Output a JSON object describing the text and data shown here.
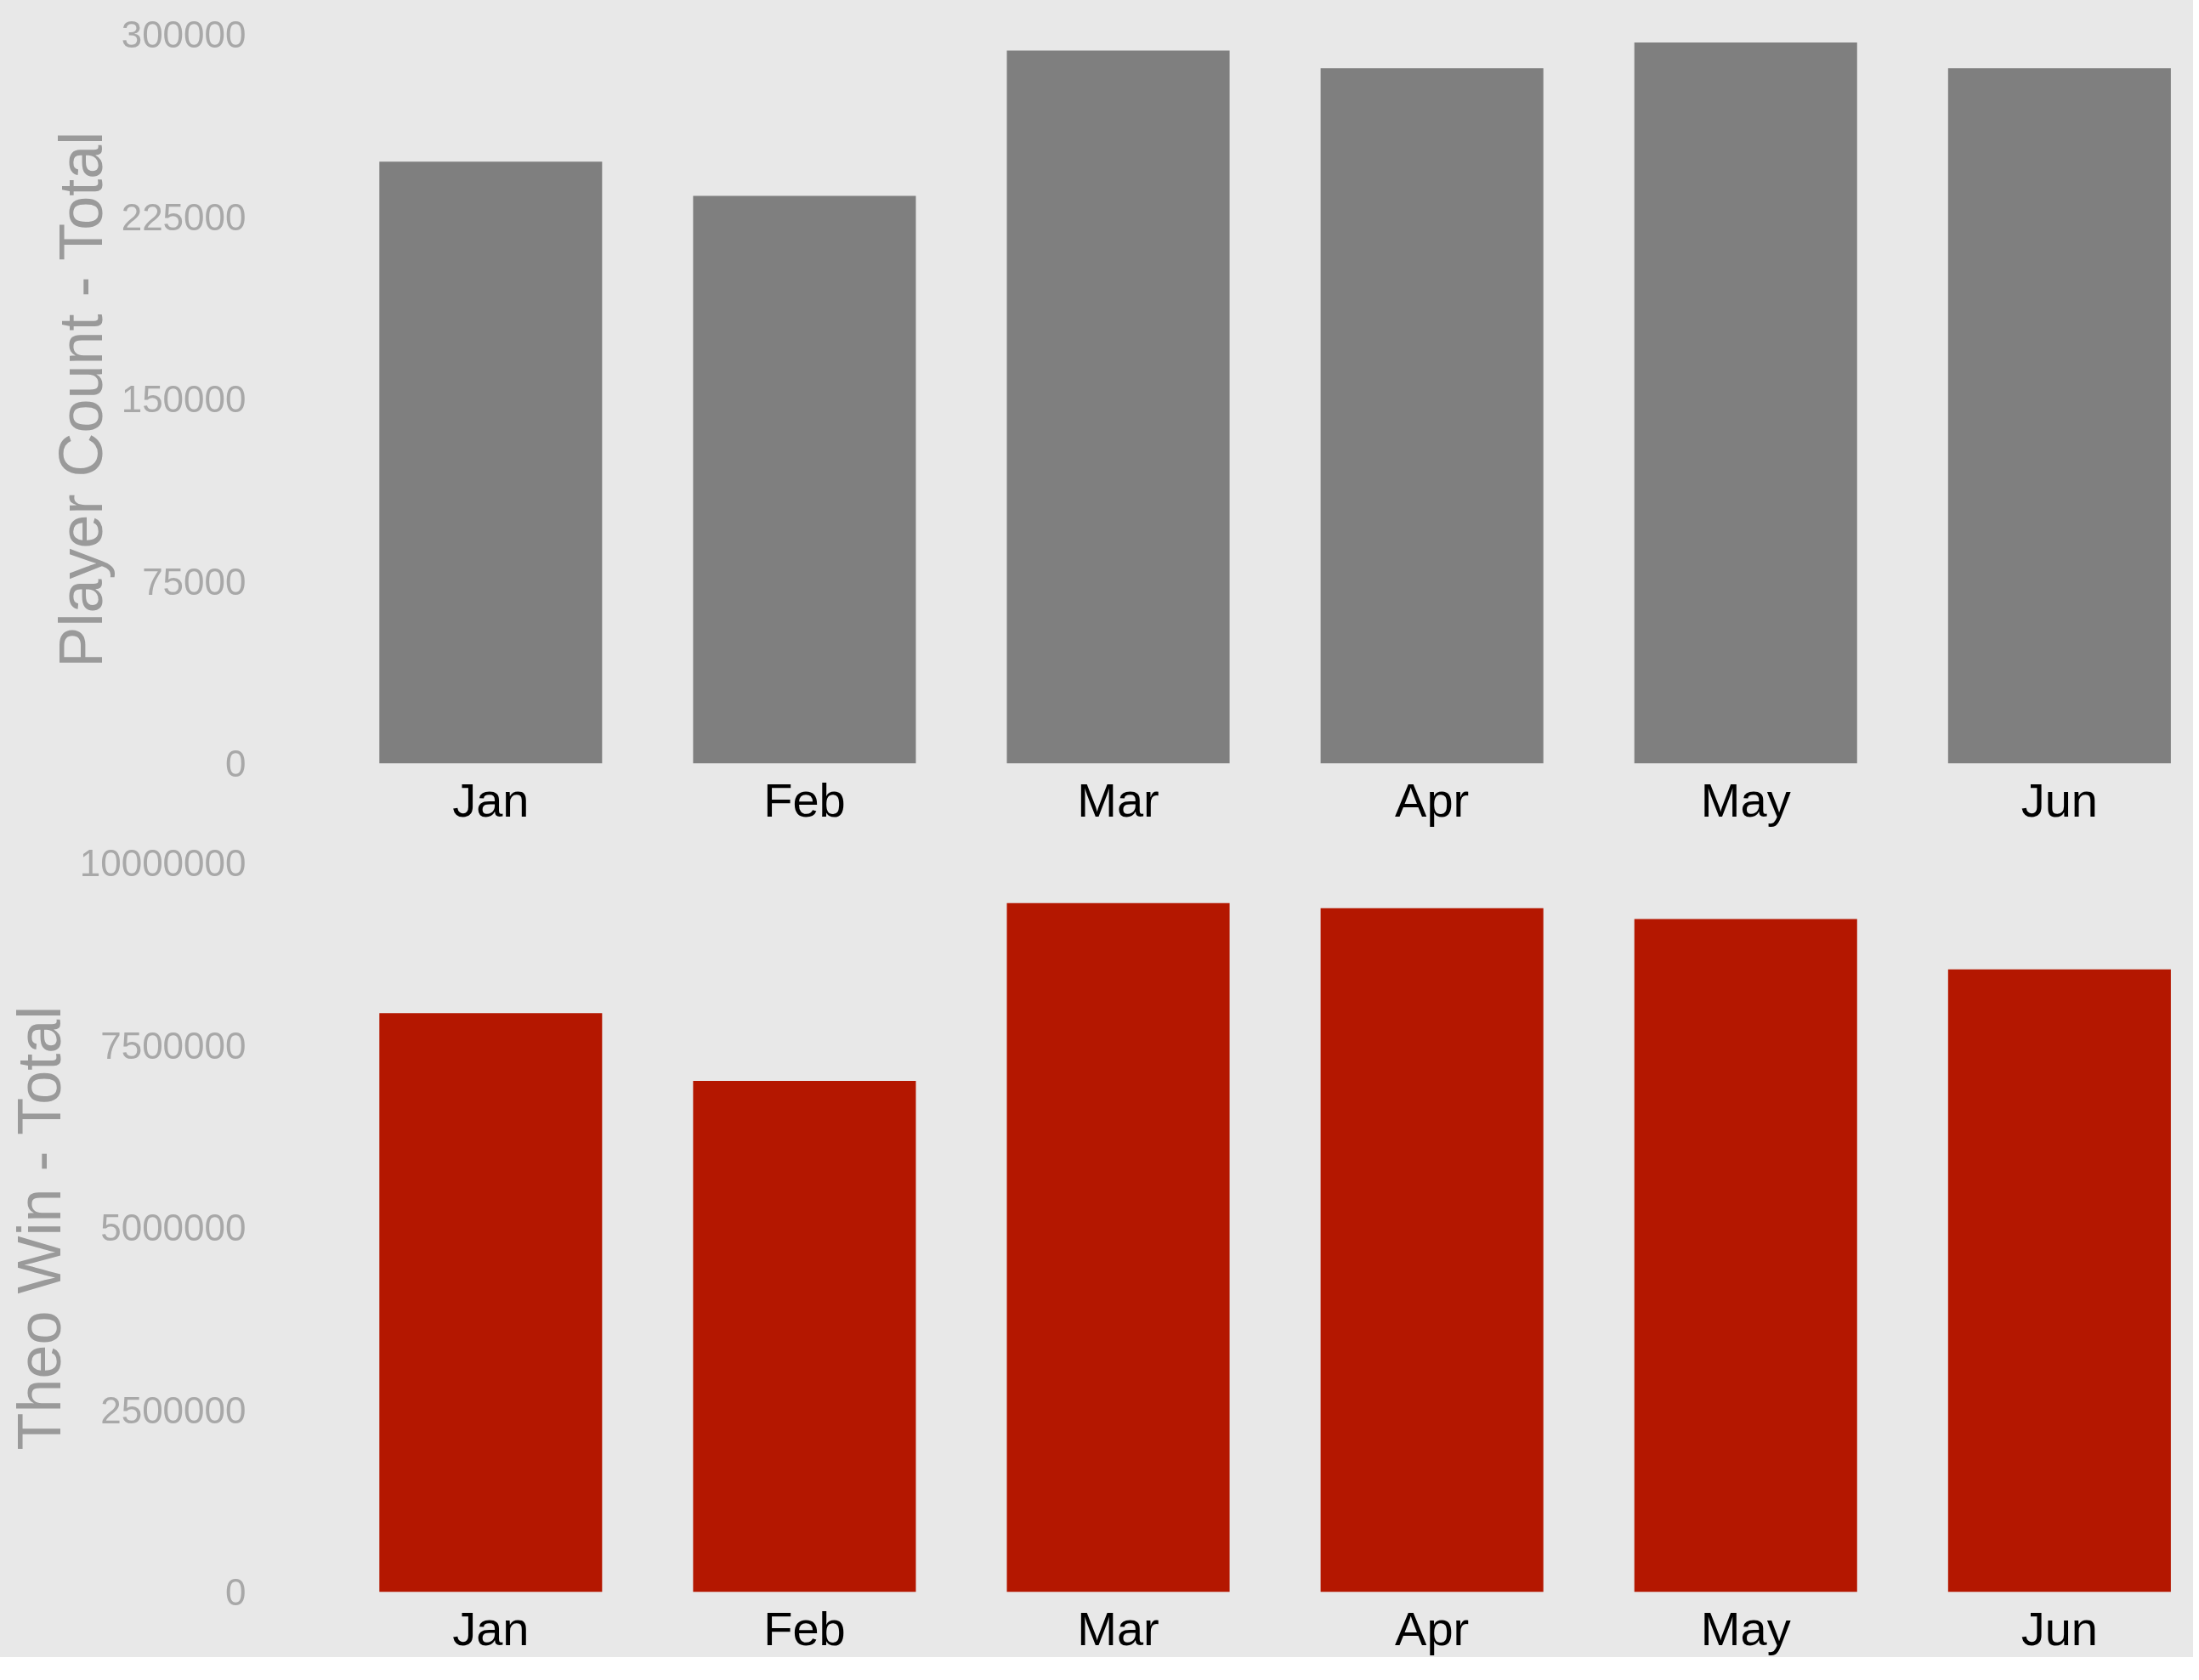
{
  "chart_data": [
    {
      "type": "bar",
      "ylabel": "Player Count - Total",
      "categories": [
        "Jan",
        "Feb",
        "Mar",
        "Apr",
        "May",
        "Jun"
      ],
      "values": [
        247600,
        233600,
        293400,
        286100,
        296700,
        286100
      ],
      "color": "#7f7f7f",
      "ylim": [
        0,
        300000
      ],
      "yticks": [
        0,
        75000,
        150000,
        225000,
        300000
      ]
    },
    {
      "type": "bar",
      "ylabel": "Theo Win - Total",
      "categories": [
        "Jan",
        "Feb",
        "Mar",
        "Apr",
        "May",
        "Jun"
      ],
      "values": [
        7940000,
        7010000,
        9450000,
        9380000,
        9230000,
        8540000
      ],
      "color": "#b41700",
      "ylim": [
        0,
        10000000
      ],
      "yticks": [
        0,
        2500000,
        5000000,
        7500000,
        10000000
      ]
    }
  ]
}
